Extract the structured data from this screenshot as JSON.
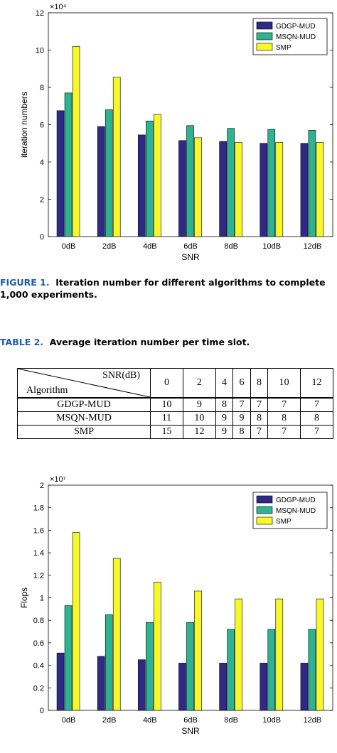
{
  "figure_caption": {
    "label": "FIGURE 1.",
    "text": "Iteration number for different algorithms to complete 1,000 experiments."
  },
  "table_caption": {
    "label": "TABLE 2.",
    "text": "Average iteration number per time slot."
  },
  "table2": {
    "corner_col_label": "SNR(dB)",
    "corner_row_label": "Algorithm",
    "columns": [
      "0",
      "2",
      "4",
      "6",
      "8",
      "10",
      "12"
    ],
    "rows": [
      {
        "name": "GDGP-MUD",
        "values": [
          "10",
          "9",
          "8",
          "7",
          "7",
          "7",
          "7"
        ]
      },
      {
        "name": "MSQN-MUD",
        "values": [
          "11",
          "10",
          "9",
          "9",
          "8",
          "8",
          "8"
        ]
      },
      {
        "name": "SMP",
        "values": [
          "15",
          "12",
          "9",
          "8",
          "7",
          "7",
          "7"
        ]
      }
    ]
  },
  "chart_data": [
    {
      "type": "bar",
      "title": "",
      "xlabel": "SNR",
      "ylabel": "iteration numbers",
      "exponent_label": "×10⁴",
      "categories": [
        "0dB",
        "2dB",
        "4dB",
        "6dB",
        "8dB",
        "10dB",
        "12dB"
      ],
      "ylim": [
        0,
        12
      ],
      "yticks": [
        "0",
        "2",
        "4",
        "6",
        "8",
        "10",
        "12"
      ],
      "series": [
        {
          "name": "GDGP-MUD",
          "color": "#2e2a85",
          "values": [
            6.75,
            5.9,
            5.45,
            5.15,
            5.1,
            5.0,
            5.0
          ]
        },
        {
          "name": "MSQN-MUD",
          "color": "#2db391",
          "values": [
            7.7,
            6.8,
            6.2,
            5.95,
            5.8,
            5.75,
            5.7
          ]
        },
        {
          "name": "SMP",
          "color": "#f7f72a",
          "values": [
            10.2,
            8.55,
            6.55,
            5.3,
            5.05,
            5.05,
            5.05
          ]
        }
      ],
      "legend_position": "top-right",
      "grid": false
    },
    {
      "type": "bar",
      "title": "",
      "xlabel": "SNR",
      "ylabel": "Flops",
      "exponent_label": "×10⁷",
      "categories": [
        "0dB",
        "2dB",
        "4dB",
        "6dB",
        "8dB",
        "10dB",
        "12dB"
      ],
      "ylim": [
        0,
        2
      ],
      "yticks": [
        "0",
        "0.2",
        "0.4",
        "0.6",
        "0.8",
        "1",
        "1.2",
        "1.4",
        "1.6",
        "1.8",
        "2"
      ],
      "series": [
        {
          "name": "GDGP-MUD",
          "color": "#2e2a85",
          "values": [
            0.51,
            0.48,
            0.45,
            0.42,
            0.42,
            0.42,
            0.42
          ]
        },
        {
          "name": "MSQN-MUD",
          "color": "#2db391",
          "values": [
            0.93,
            0.85,
            0.78,
            0.78,
            0.72,
            0.72,
            0.72
          ]
        },
        {
          "name": "SMP",
          "color": "#f7f72a",
          "values": [
            1.58,
            1.35,
            1.14,
            1.06,
            0.99,
            0.99,
            0.99
          ]
        }
      ],
      "legend_position": "top-right",
      "grid": false
    }
  ]
}
